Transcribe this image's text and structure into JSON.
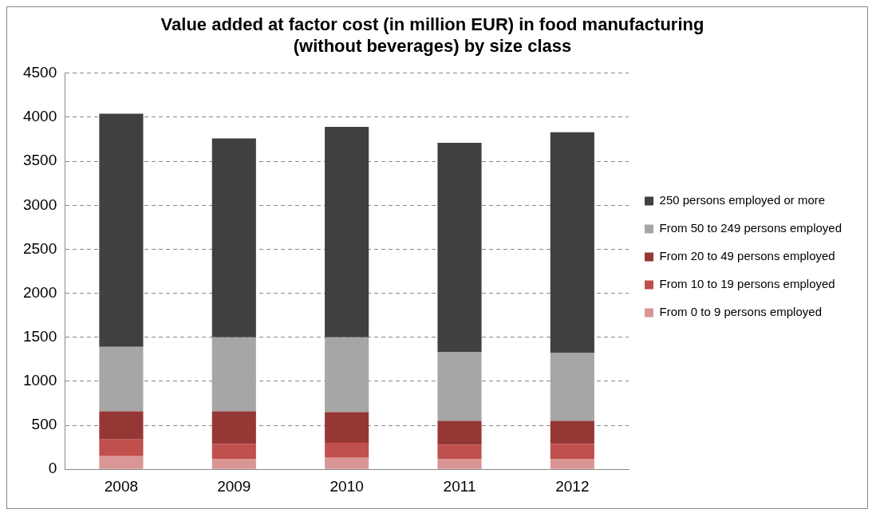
{
  "chart_data": {
    "type": "bar",
    "title": [
      "Value added at factor cost (in million EUR) in food manufacturing",
      "(without beverages) by size class"
    ],
    "categories": [
      "2008",
      "2009",
      "2010",
      "2011",
      "2012"
    ],
    "stacked": true,
    "ylim": [
      0,
      4500
    ],
    "yticks": [
      0,
      500,
      1000,
      1500,
      2000,
      2500,
      3000,
      3500,
      4000,
      4500
    ],
    "grid": "y",
    "legend": "right",
    "series": [
      {
        "name": "From 0 to 9 persons employed",
        "color": "#d99694",
        "values": [
          150,
          120,
          130,
          120,
          120
        ]
      },
      {
        "name": "From 10 to 19 persons employed",
        "color": "#c0504d",
        "values": [
          190,
          170,
          170,
          160,
          170
        ]
      },
      {
        "name": "From 20 to 49 persons employed",
        "color": "#953735",
        "values": [
          320,
          370,
          350,
          270,
          260
        ]
      },
      {
        "name": "From 50 to 249 persons employed",
        "color": "#a6a6a6",
        "values": [
          730,
          840,
          850,
          780,
          770
        ]
      },
      {
        "name": "250 persons employed or more",
        "color": "#404040",
        "values": [
          2650,
          2260,
          2390,
          2380,
          2510
        ]
      }
    ]
  }
}
